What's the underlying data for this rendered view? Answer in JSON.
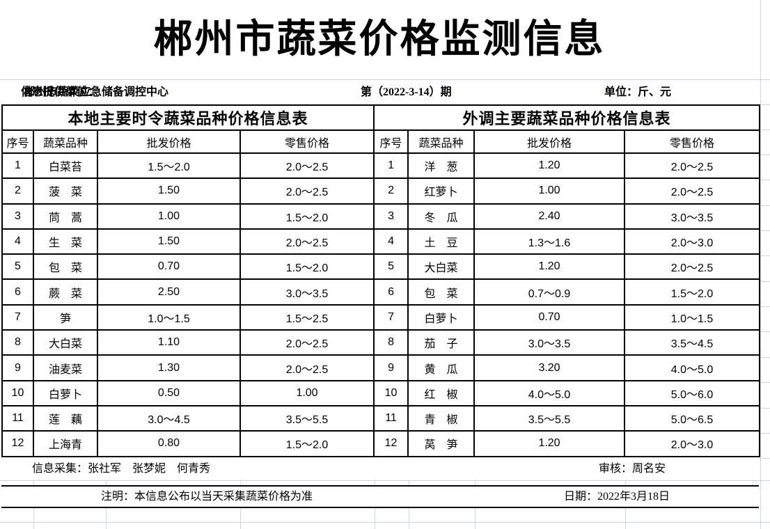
{
  "title": "郴州市蔬菜价格监测信息",
  "info_bar": {
    "provider_label": "信息提供单位：",
    "provider_value": "郴州市蔬菜应急储备调控中心",
    "issue": "第（2022-3-14）期",
    "unit": "单位：斤、元"
  },
  "tables": {
    "columns": [
      "序号",
      "蔬菜品种",
      "批发价格",
      "零售价格"
    ],
    "local": {
      "header": "本地主要时令蔬菜品种价格信息表",
      "rows": [
        [
          "1",
          "白菜苔",
          "1.5～2.0",
          "2.0～2.5"
        ],
        [
          "2",
          "菠　菜",
          "1.50",
          "2.0～2.5"
        ],
        [
          "3",
          "茼　蒿",
          "1.00",
          "1.5～2.0"
        ],
        [
          "4",
          "生　菜",
          "1.50",
          "2.0～2.5"
        ],
        [
          "5",
          "包　菜",
          "0.70",
          "1.5～2.0"
        ],
        [
          "6",
          "蕨　菜",
          "2.50",
          "3.0～3.5"
        ],
        [
          "7",
          "笋",
          "1.0～1.5",
          "1.5～2.5"
        ],
        [
          "8",
          "大白菜",
          "1.10",
          "2.0～2.5"
        ],
        [
          "9",
          "油麦菜",
          "1.30",
          "2.0～2.5"
        ],
        [
          "10",
          "白萝卜",
          "0.50",
          "1.00"
        ],
        [
          "11",
          "莲　藕",
          "3.0～4.5",
          "3.5～5.5"
        ],
        [
          "12",
          "上海青",
          "0.80",
          "1.5～2.0"
        ]
      ]
    },
    "imported": {
      "header": "外调主要蔬菜品种价格信息表",
      "rows": [
        [
          "1",
          "洋　葱",
          "1.20",
          "2.0～2.5"
        ],
        [
          "2",
          "红萝卜",
          "1.00",
          "2.0～2.5"
        ],
        [
          "3",
          "冬　瓜",
          "2.40",
          "3.0～3.5"
        ],
        [
          "4",
          "土　豆",
          "1.3～1.6",
          "2.0～3.0"
        ],
        [
          "5",
          "大白菜",
          "1.20",
          "2.0～2.5"
        ],
        [
          "6",
          "包　菜",
          "0.7～0.9",
          "1.5～2.0"
        ],
        [
          "7",
          "白萝卜",
          "0.70",
          "1.0～1.5"
        ],
        [
          "8",
          "茄　子",
          "3.0～3.5",
          "3.5～4.5"
        ],
        [
          "9",
          "黄　瓜",
          "3.20",
          "4.0～5.0"
        ],
        [
          "10",
          "红　椒",
          "4.0～5.0",
          "5.0～6.0"
        ],
        [
          "11",
          "青　椒",
          "3.5～5.5",
          "5.0～6.5"
        ],
        [
          "12",
          "莴　笋",
          "1.20",
          "2.0～3.0"
        ]
      ]
    }
  },
  "footer": {
    "collectors": "信息采集：张社军　张梦妮　何青秀",
    "reviewer": "审核：周名安",
    "note": "注明：本信息公布以当天采集蔬菜价格为准",
    "date": "日期：2022年3月18日"
  },
  "colors": {
    "grid_line": "#ccd5e3",
    "table_border": "#000000",
    "text": "#000000",
    "background": "#ffffff"
  }
}
